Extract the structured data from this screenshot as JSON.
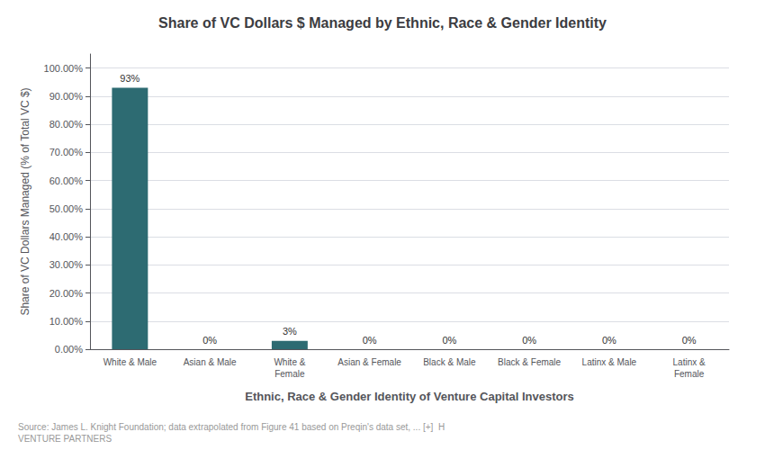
{
  "chart_data": {
    "type": "bar",
    "title": "Share of VC Dollars $ Managed by Ethnic, Race & Gender Identity",
    "xlabel": "Ethnic, Race & Gender Identity of Venture Capital Investors",
    "ylabel": "Share of VC Dollars Managed (% of Total VC $)",
    "categories": [
      "White & Male",
      "Asian & Male",
      "White &\nFemale",
      "Asian & Female",
      "Black & Male",
      "Black & Female",
      "Latinx & Male",
      "Latinx &\nFemale"
    ],
    "values": [
      93,
      0,
      3,
      0,
      0,
      0,
      0,
      0
    ],
    "value_labels": [
      "93%",
      "0%",
      "3%",
      "0%",
      "0%",
      "0%",
      "0%",
      "0%"
    ],
    "data_labels": true,
    "color": "#2d6b72",
    "ylim": [
      0,
      105
    ],
    "yticks": [
      {
        "value": 0,
        "label": "0.00%"
      },
      {
        "value": 10,
        "label": "10.00%"
      },
      {
        "value": 20,
        "label": "20.00%"
      },
      {
        "value": 30,
        "label": "30.00%"
      },
      {
        "value": 40,
        "label": "40.00%"
      },
      {
        "value": 50,
        "label": "50.00%"
      },
      {
        "value": 60,
        "label": "60.00%"
      },
      {
        "value": 70,
        "label": "70.00%"
      },
      {
        "value": 80,
        "label": "80.00%"
      },
      {
        "value": 90,
        "label": "90.00%"
      },
      {
        "value": 100,
        "label": "100.00%"
      }
    ],
    "grid": true,
    "annotations": [
      "Source: James L. Knight Foundation; data extrapolated from Figure 41 based on Preqin's data set, ... [+]  H\nVENTURE PARTNERS"
    ]
  }
}
